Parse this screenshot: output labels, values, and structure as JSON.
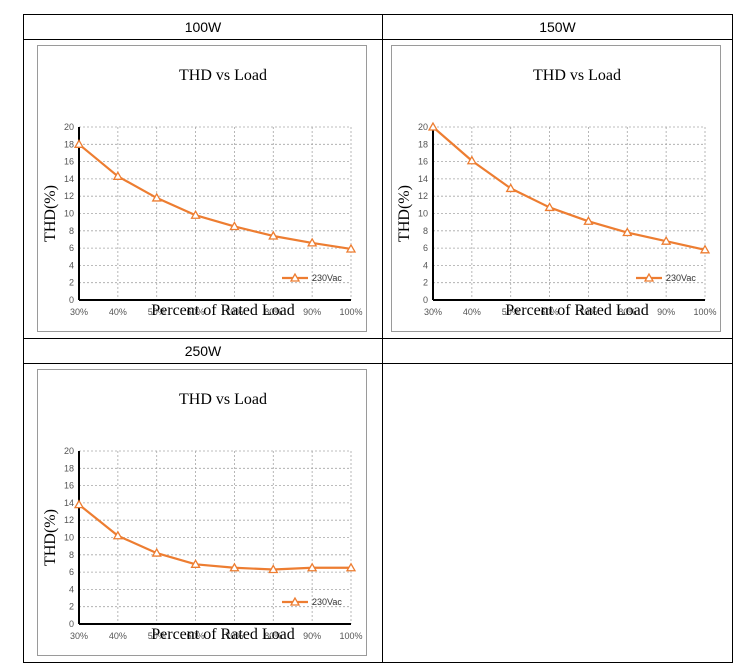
{
  "table": {
    "headers": [
      "100W",
      "150W",
      "250W",
      ""
    ]
  },
  "chart_data": [
    {
      "type": "line",
      "title": "THD vs Load",
      "xlabel": "Percent of Rated Load",
      "ylabel": "THD(%)",
      "categories": [
        "30%",
        "40%",
        "50%",
        "60%",
        "70%",
        "80%",
        "90%",
        "100%"
      ],
      "yticks": [
        0,
        2,
        4,
        6,
        8,
        10,
        12,
        14,
        16,
        18,
        20
      ],
      "ylim": [
        0,
        20
      ],
      "grid": true,
      "legend_position": "bottom-right",
      "series": [
        {
          "name": "230Vac",
          "color": "#ed7d31",
          "marker": "triangle-open",
          "values": [
            18.0,
            14.3,
            11.8,
            9.8,
            8.5,
            7.4,
            6.6,
            5.9
          ]
        }
      ]
    },
    {
      "type": "line",
      "title": "THD vs Load",
      "xlabel": "Percent of Rated Load",
      "ylabel": "THD(%)",
      "categories": [
        "30%",
        "40%",
        "50%",
        "60%",
        "70%",
        "80%",
        "90%",
        "100%"
      ],
      "yticks": [
        0,
        2,
        4,
        6,
        8,
        10,
        12,
        14,
        16,
        18,
        20
      ],
      "ylim": [
        0,
        20
      ],
      "grid": true,
      "legend_position": "bottom-right",
      "series": [
        {
          "name": "230Vac",
          "color": "#ed7d31",
          "marker": "triangle-open",
          "values": [
            20.0,
            16.1,
            12.9,
            10.7,
            9.1,
            7.8,
            6.8,
            5.8
          ]
        }
      ]
    },
    {
      "type": "line",
      "title": "THD vs Load",
      "xlabel": "Percent of Rated Load",
      "ylabel": "THD(%)",
      "categories": [
        "30%",
        "40%",
        "50%",
        "60%",
        "70%",
        "80%",
        "90%",
        "100%"
      ],
      "yticks": [
        0,
        2,
        4,
        6,
        8,
        10,
        12,
        14,
        16,
        18,
        20
      ],
      "ylim": [
        0,
        20
      ],
      "grid": true,
      "legend_position": "bottom-right",
      "series": [
        {
          "name": "230Vac",
          "color": "#ed7d31",
          "marker": "triangle-open",
          "values": [
            13.8,
            10.2,
            8.2,
            6.9,
            6.5,
            6.3,
            6.5,
            6.5
          ]
        }
      ]
    }
  ]
}
